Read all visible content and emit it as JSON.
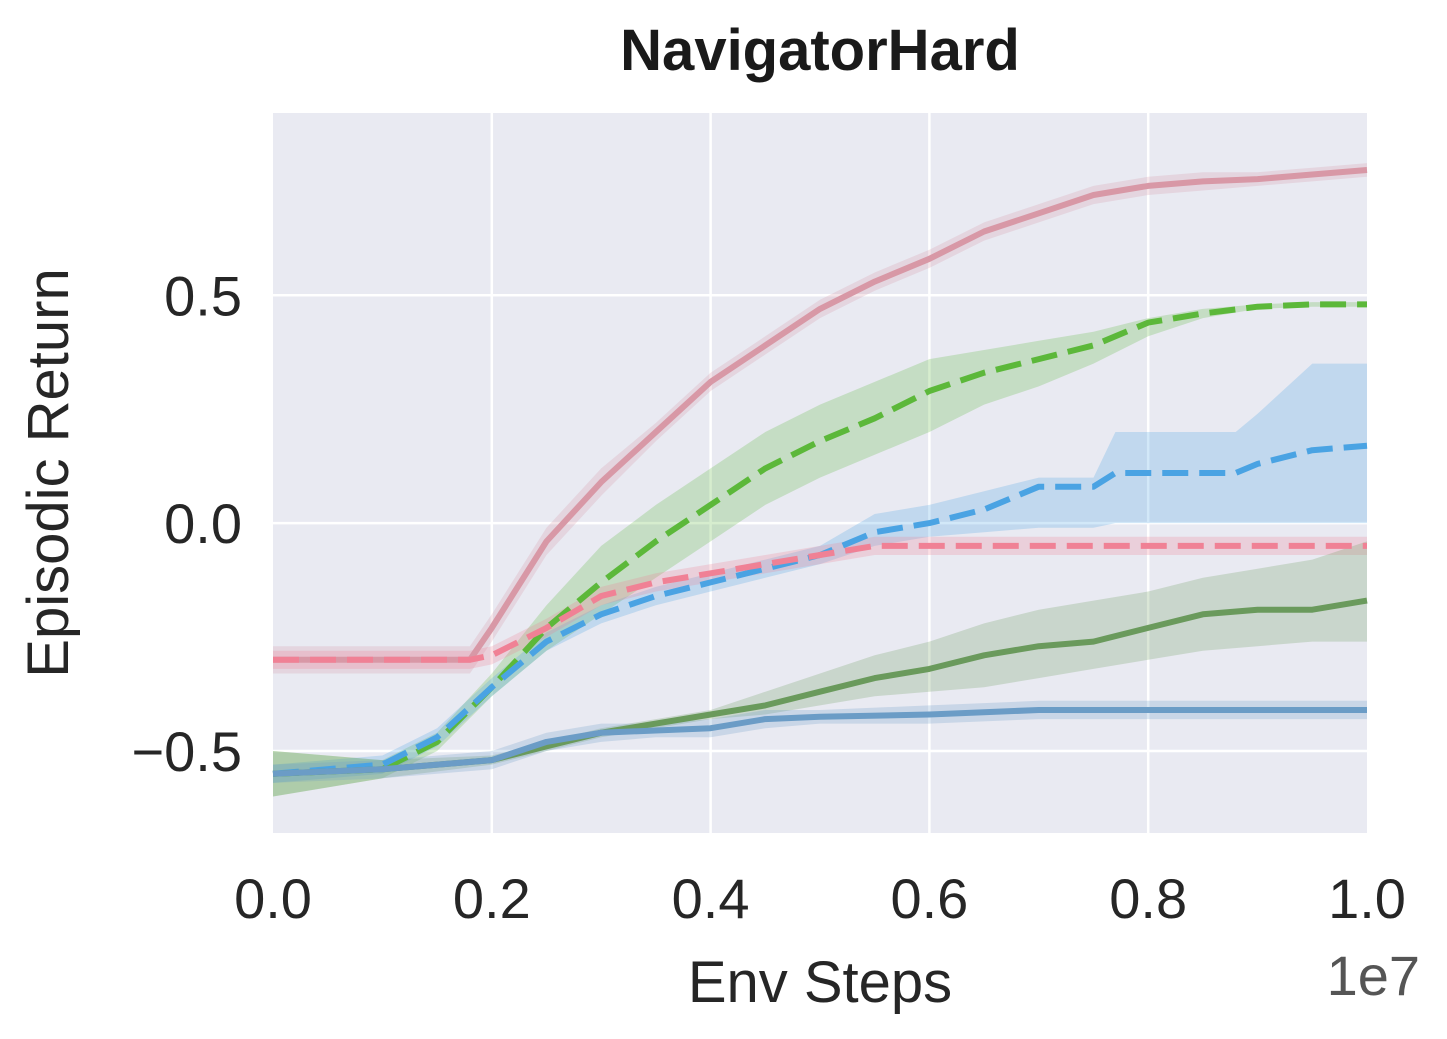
{
  "chart_data": {
    "type": "line",
    "title": "NavigatorHard",
    "xlabel": "Env Steps",
    "ylabel": "Episodic Return",
    "x_offset_label": "1e7",
    "xlim": [
      0.0,
      1.0
    ],
    "ylim": [
      -0.68,
      0.9
    ],
    "x_ticks": [
      "0.0",
      "0.2",
      "0.4",
      "0.6",
      "0.8",
      "1.0"
    ],
    "y_ticks": [
      "0.5",
      "0.0",
      "−0.5"
    ],
    "y_tick_values": [
      0.5,
      0.0,
      -0.5
    ],
    "x_tick_values": [
      0.0,
      0.2,
      0.4,
      0.6,
      0.8,
      1.0
    ],
    "grid": true,
    "background": "#e9eaf2",
    "series": [
      {
        "color": "#d898a6",
        "dash": "solid",
        "x": [
          0.0,
          0.18,
          0.2,
          0.25,
          0.3,
          0.35,
          0.4,
          0.45,
          0.5,
          0.55,
          0.6,
          0.65,
          0.7,
          0.75,
          0.8,
          0.85,
          0.9,
          0.95,
          1.0
        ],
        "y": [
          -0.3,
          -0.3,
          -0.23,
          -0.04,
          0.09,
          0.2,
          0.31,
          0.39,
          0.47,
          0.53,
          0.58,
          0.64,
          0.68,
          0.72,
          0.74,
          0.75,
          0.755,
          0.765,
          0.775
        ],
        "lower": [
          -0.33,
          -0.33,
          -0.26,
          -0.07,
          0.06,
          0.18,
          0.29,
          0.37,
          0.45,
          0.51,
          0.56,
          0.62,
          0.66,
          0.7,
          0.72,
          0.73,
          0.74,
          0.75,
          0.76
        ],
        "upper": [
          -0.27,
          -0.27,
          -0.2,
          -0.01,
          0.12,
          0.22,
          0.33,
          0.41,
          0.49,
          0.55,
          0.6,
          0.66,
          0.7,
          0.74,
          0.76,
          0.77,
          0.77,
          0.78,
          0.79
        ]
      },
      {
        "color": "#5cb83a",
        "dash": "dashed",
        "x": [
          0.0,
          0.1,
          0.15,
          0.2,
          0.25,
          0.3,
          0.35,
          0.4,
          0.45,
          0.5,
          0.55,
          0.6,
          0.65,
          0.7,
          0.75,
          0.8,
          0.85,
          0.9,
          0.95,
          1.0
        ],
        "y": [
          -0.55,
          -0.54,
          -0.48,
          -0.36,
          -0.23,
          -0.13,
          -0.04,
          0.04,
          0.12,
          0.18,
          0.23,
          0.29,
          0.33,
          0.36,
          0.39,
          0.44,
          0.46,
          0.475,
          0.48,
          0.48
        ],
        "lower": [
          -0.6,
          -0.56,
          -0.5,
          -0.38,
          -0.28,
          -0.2,
          -0.12,
          -0.04,
          0.04,
          0.1,
          0.15,
          0.2,
          0.26,
          0.3,
          0.35,
          0.41,
          0.45,
          0.47,
          0.475,
          0.475
        ],
        "upper": [
          -0.5,
          -0.52,
          -0.46,
          -0.33,
          -0.18,
          -0.05,
          0.04,
          0.12,
          0.2,
          0.26,
          0.31,
          0.36,
          0.38,
          0.4,
          0.42,
          0.45,
          0.47,
          0.48,
          0.485,
          0.485
        ]
      },
      {
        "color": "#4aa3e3",
        "dash": "dashed",
        "x": [
          0.0,
          0.1,
          0.15,
          0.2,
          0.25,
          0.3,
          0.35,
          0.4,
          0.45,
          0.5,
          0.55,
          0.6,
          0.65,
          0.7,
          0.75,
          0.77,
          0.8,
          0.88,
          0.9,
          0.95,
          1.0
        ],
        "y": [
          -0.55,
          -0.53,
          -0.47,
          -0.36,
          -0.26,
          -0.2,
          -0.16,
          -0.13,
          -0.1,
          -0.07,
          -0.02,
          0.0,
          0.03,
          0.08,
          0.08,
          0.11,
          0.11,
          0.11,
          0.13,
          0.16,
          0.17
        ],
        "lower": [
          -0.57,
          -0.55,
          -0.49,
          -0.38,
          -0.28,
          -0.22,
          -0.18,
          -0.15,
          -0.12,
          -0.09,
          -0.05,
          -0.03,
          -0.02,
          -0.01,
          -0.01,
          0.0,
          0.0,
          0.0,
          0.0,
          0.0,
          0.0
        ],
        "upper": [
          -0.53,
          -0.51,
          -0.45,
          -0.34,
          -0.24,
          -0.18,
          -0.14,
          -0.11,
          -0.08,
          -0.05,
          0.02,
          0.04,
          0.07,
          0.1,
          0.1,
          0.2,
          0.2,
          0.2,
          0.24,
          0.35,
          0.35
        ]
      },
      {
        "color": "#f08195",
        "dash": "dashed",
        "x": [
          0.0,
          0.18,
          0.2,
          0.25,
          0.3,
          0.35,
          0.4,
          0.45,
          0.5,
          0.55,
          0.6,
          0.7,
          0.8,
          0.9,
          1.0
        ],
        "y": [
          -0.3,
          -0.3,
          -0.29,
          -0.23,
          -0.16,
          -0.13,
          -0.11,
          -0.09,
          -0.07,
          -0.05,
          -0.05,
          -0.05,
          -0.05,
          -0.05,
          -0.05
        ],
        "lower": [
          -0.32,
          -0.32,
          -0.31,
          -0.25,
          -0.18,
          -0.15,
          -0.13,
          -0.11,
          -0.09,
          -0.07,
          -0.07,
          -0.07,
          -0.07,
          -0.07,
          -0.07
        ],
        "upper": [
          -0.28,
          -0.28,
          -0.27,
          -0.21,
          -0.14,
          -0.11,
          -0.09,
          -0.07,
          -0.05,
          -0.03,
          -0.03,
          -0.03,
          -0.03,
          -0.03,
          -0.03
        ]
      },
      {
        "color": "#6a9a5c",
        "dash": "solid",
        "x": [
          0.0,
          0.1,
          0.2,
          0.25,
          0.3,
          0.35,
          0.4,
          0.45,
          0.5,
          0.55,
          0.6,
          0.65,
          0.7,
          0.75,
          0.8,
          0.85,
          0.9,
          0.95,
          1.0
        ],
        "y": [
          -0.55,
          -0.54,
          -0.52,
          -0.49,
          -0.46,
          -0.44,
          -0.42,
          -0.4,
          -0.37,
          -0.34,
          -0.32,
          -0.29,
          -0.27,
          -0.26,
          -0.23,
          -0.2,
          -0.19,
          -0.19,
          -0.17
        ],
        "lower": [
          -0.6,
          -0.56,
          -0.53,
          -0.5,
          -0.47,
          -0.45,
          -0.43,
          -0.42,
          -0.4,
          -0.38,
          -0.37,
          -0.36,
          -0.34,
          -0.32,
          -0.3,
          -0.28,
          -0.27,
          -0.26,
          -0.26
        ],
        "upper": [
          -0.5,
          -0.52,
          -0.51,
          -0.48,
          -0.45,
          -0.43,
          -0.41,
          -0.37,
          -0.33,
          -0.29,
          -0.26,
          -0.22,
          -0.19,
          -0.17,
          -0.15,
          -0.12,
          -0.1,
          -0.08,
          -0.04
        ]
      },
      {
        "color": "#6b9cc6",
        "dash": "solid",
        "x": [
          0.0,
          0.1,
          0.2,
          0.25,
          0.3,
          0.35,
          0.4,
          0.45,
          0.5,
          0.6,
          0.7,
          0.8,
          0.9,
          1.0
        ],
        "y": [
          -0.55,
          -0.54,
          -0.52,
          -0.48,
          -0.46,
          -0.455,
          -0.45,
          -0.43,
          -0.425,
          -0.42,
          -0.41,
          -0.41,
          -0.41,
          -0.41
        ],
        "lower": [
          -0.57,
          -0.56,
          -0.54,
          -0.5,
          -0.48,
          -0.47,
          -0.47,
          -0.45,
          -0.44,
          -0.44,
          -0.43,
          -0.43,
          -0.43,
          -0.43
        ],
        "upper": [
          -0.53,
          -0.52,
          -0.5,
          -0.46,
          -0.44,
          -0.44,
          -0.43,
          -0.41,
          -0.41,
          -0.4,
          -0.39,
          -0.39,
          -0.39,
          -0.39
        ]
      }
    ]
  }
}
